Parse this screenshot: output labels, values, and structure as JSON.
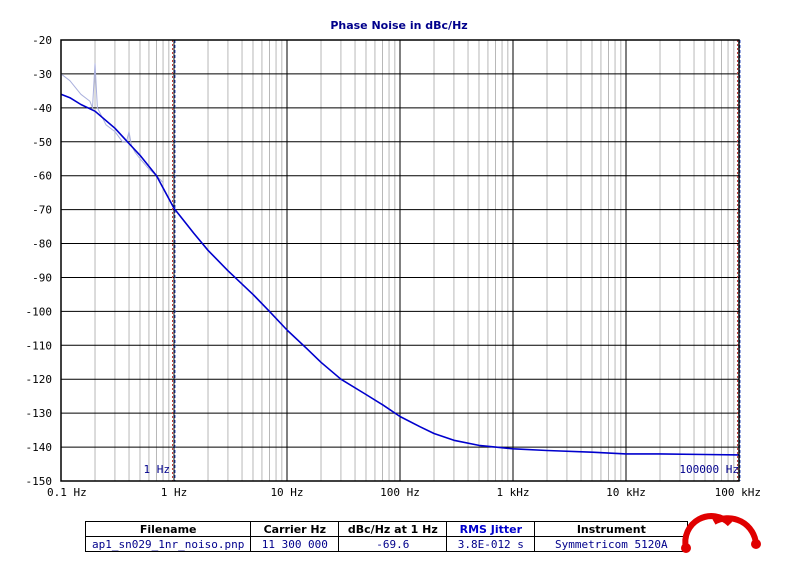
{
  "colors": {
    "curve": "#0000cd",
    "raw_curve": "#aab0dd",
    "marker": "#c04040",
    "grid": "#b8b8b8",
    "grid_major": "#000000",
    "logo": "#e00000"
  },
  "chart_data": {
    "type": "line",
    "title": "Phase Noise in dBc/Hz",
    "xscale": "log",
    "xlim": [
      0.1,
      100000
    ],
    "ylim": [
      -150,
      -20
    ],
    "grid": true,
    "x_tick_labels": [
      "0.1 Hz",
      "1 Hz",
      "10 Hz",
      "100 Hz",
      "1 kHz",
      "10 kHz",
      "100 kHz"
    ],
    "y_tick_labels": [
      "-20",
      "-30",
      "-40",
      "-50",
      "-60",
      "-70",
      "-80",
      "-90",
      "-100",
      "-110",
      "-120",
      "-130",
      "-140",
      "-150"
    ],
    "markers": [
      {
        "x": 1,
        "label": "1 Hz"
      },
      {
        "x": 100000,
        "label": "100000 Hz"
      }
    ],
    "series": [
      {
        "x": [
          0.1,
          0.12,
          0.15,
          0.2,
          0.3,
          0.4,
          0.5,
          0.7,
          1,
          1.5,
          2,
          3,
          5,
          7,
          10,
          15,
          20,
          30,
          50,
          70,
          100,
          150,
          200,
          300,
          500,
          700,
          1000,
          2000,
          5000,
          10000,
          20000,
          50000,
          100000
        ],
        "y": [
          -36,
          -37,
          -39,
          -41,
          -46,
          -50.5,
          -54,
          -60,
          -69.6,
          -77,
          -82,
          -88,
          -95,
          -100,
          -105.5,
          -111,
          -115,
          -120,
          -124.5,
          -127.5,
          -131,
          -134,
          -136,
          -138,
          -139.5,
          -140,
          -140.5,
          -141,
          -141.5,
          -142,
          -142,
          -142.2,
          -142.3
        ]
      },
      {
        "x": [
          0.1,
          0.12,
          0.15,
          0.18,
          0.19,
          0.2,
          0.21,
          0.25,
          0.3,
          0.35,
          0.38,
          0.4,
          0.42,
          0.45,
          0.5,
          0.6,
          0.7,
          0.8
        ],
        "y": [
          -30,
          -32,
          -36,
          -38,
          -40,
          -27,
          -40,
          -45,
          -47,
          -50,
          -50,
          -47,
          -51,
          -53,
          -55,
          -58,
          -60,
          -62
        ]
      }
    ]
  },
  "table": {
    "headers": [
      "Filename",
      "Carrier Hz",
      "dBc/Hz at 1 Hz",
      "RMS Jitter",
      "Instrument"
    ],
    "values": [
      "ap1_sn029_1nr_noiso.pnp",
      "11 300 000",
      "-69.6",
      "3.8E-012 s",
      "Symmetricom 5120A"
    ]
  },
  "logo": {
    "name": "red-logo-icon"
  }
}
